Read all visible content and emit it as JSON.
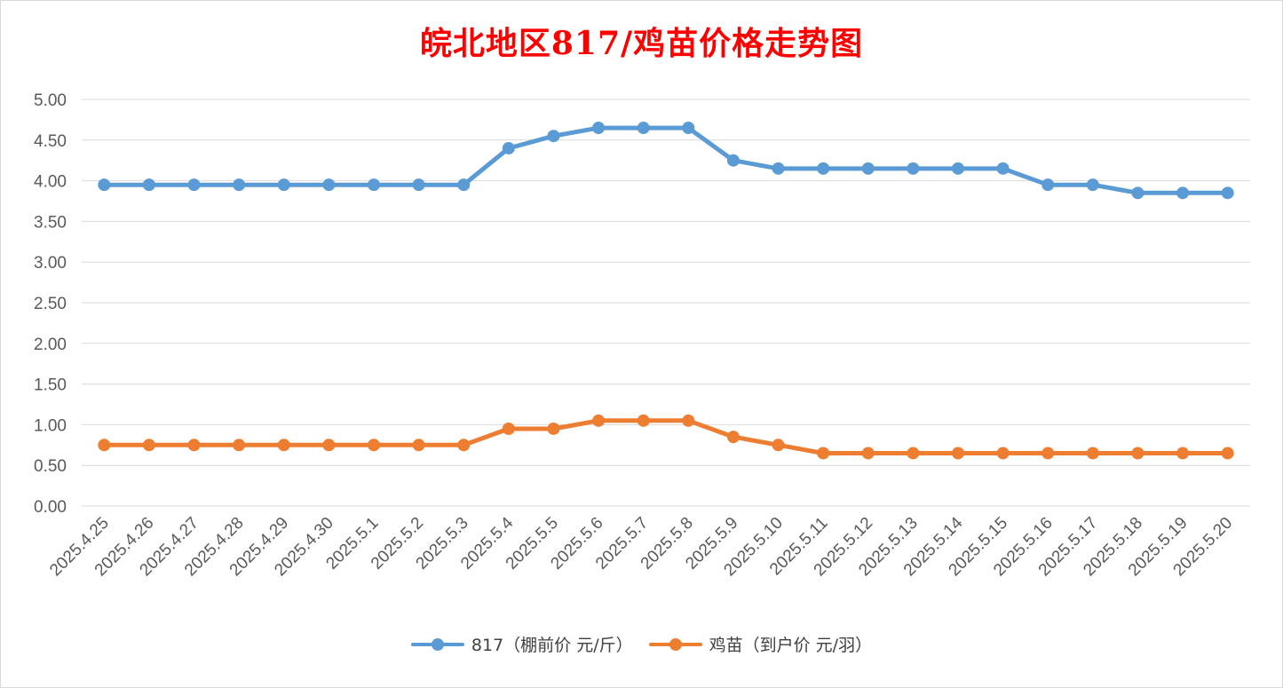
{
  "chart_data": {
    "type": "line",
    "title": "皖北地区817/鸡苗价格走势图",
    "categories": [
      "2025.4.25",
      "2025.4.26",
      "2025.4.27",
      "2025.4.28",
      "2025.4.29",
      "2025.4.30",
      "2025.5.1",
      "2025.5.2",
      "2025.5.3",
      "2025.5.4",
      "2025.5.5",
      "2025.5.6",
      "2025.5.7",
      "2025.5.8",
      "2025.5.9",
      "2025.5.10",
      "2025.5.11",
      "2025.5.12",
      "2025.5.13",
      "2025.5.14",
      "2025.5.15",
      "2025.5.16",
      "2025.5.17",
      "2025.5.18",
      "2025.5.19",
      "2025.5.20"
    ],
    "series": [
      {
        "name": "817（棚前价 元/斤）",
        "color": "#5b9bd5",
        "values": [
          3.95,
          3.95,
          3.95,
          3.95,
          3.95,
          3.95,
          3.95,
          3.95,
          3.95,
          4.4,
          4.55,
          4.65,
          4.65,
          4.65,
          4.25,
          4.15,
          4.15,
          4.15,
          4.15,
          4.15,
          4.15,
          3.95,
          3.95,
          3.85,
          3.85,
          3.85
        ]
      },
      {
        "name": "鸡苗（到户价 元/羽）",
        "color": "#ed7d31",
        "values": [
          0.75,
          0.75,
          0.75,
          0.75,
          0.75,
          0.75,
          0.75,
          0.75,
          0.75,
          0.95,
          0.95,
          1.05,
          1.05,
          1.05,
          0.85,
          0.75,
          0.65,
          0.65,
          0.65,
          0.65,
          0.65,
          0.65,
          0.65,
          0.65,
          0.65,
          0.65
        ]
      }
    ],
    "ylim": [
      0,
      5
    ],
    "yticks": [
      "0.00",
      "0.50",
      "1.00",
      "1.50",
      "2.00",
      "2.50",
      "3.00",
      "3.50",
      "4.00",
      "4.50",
      "5.00"
    ],
    "grid": true,
    "legend_position": "bottom",
    "title_color": "#ff0000"
  }
}
